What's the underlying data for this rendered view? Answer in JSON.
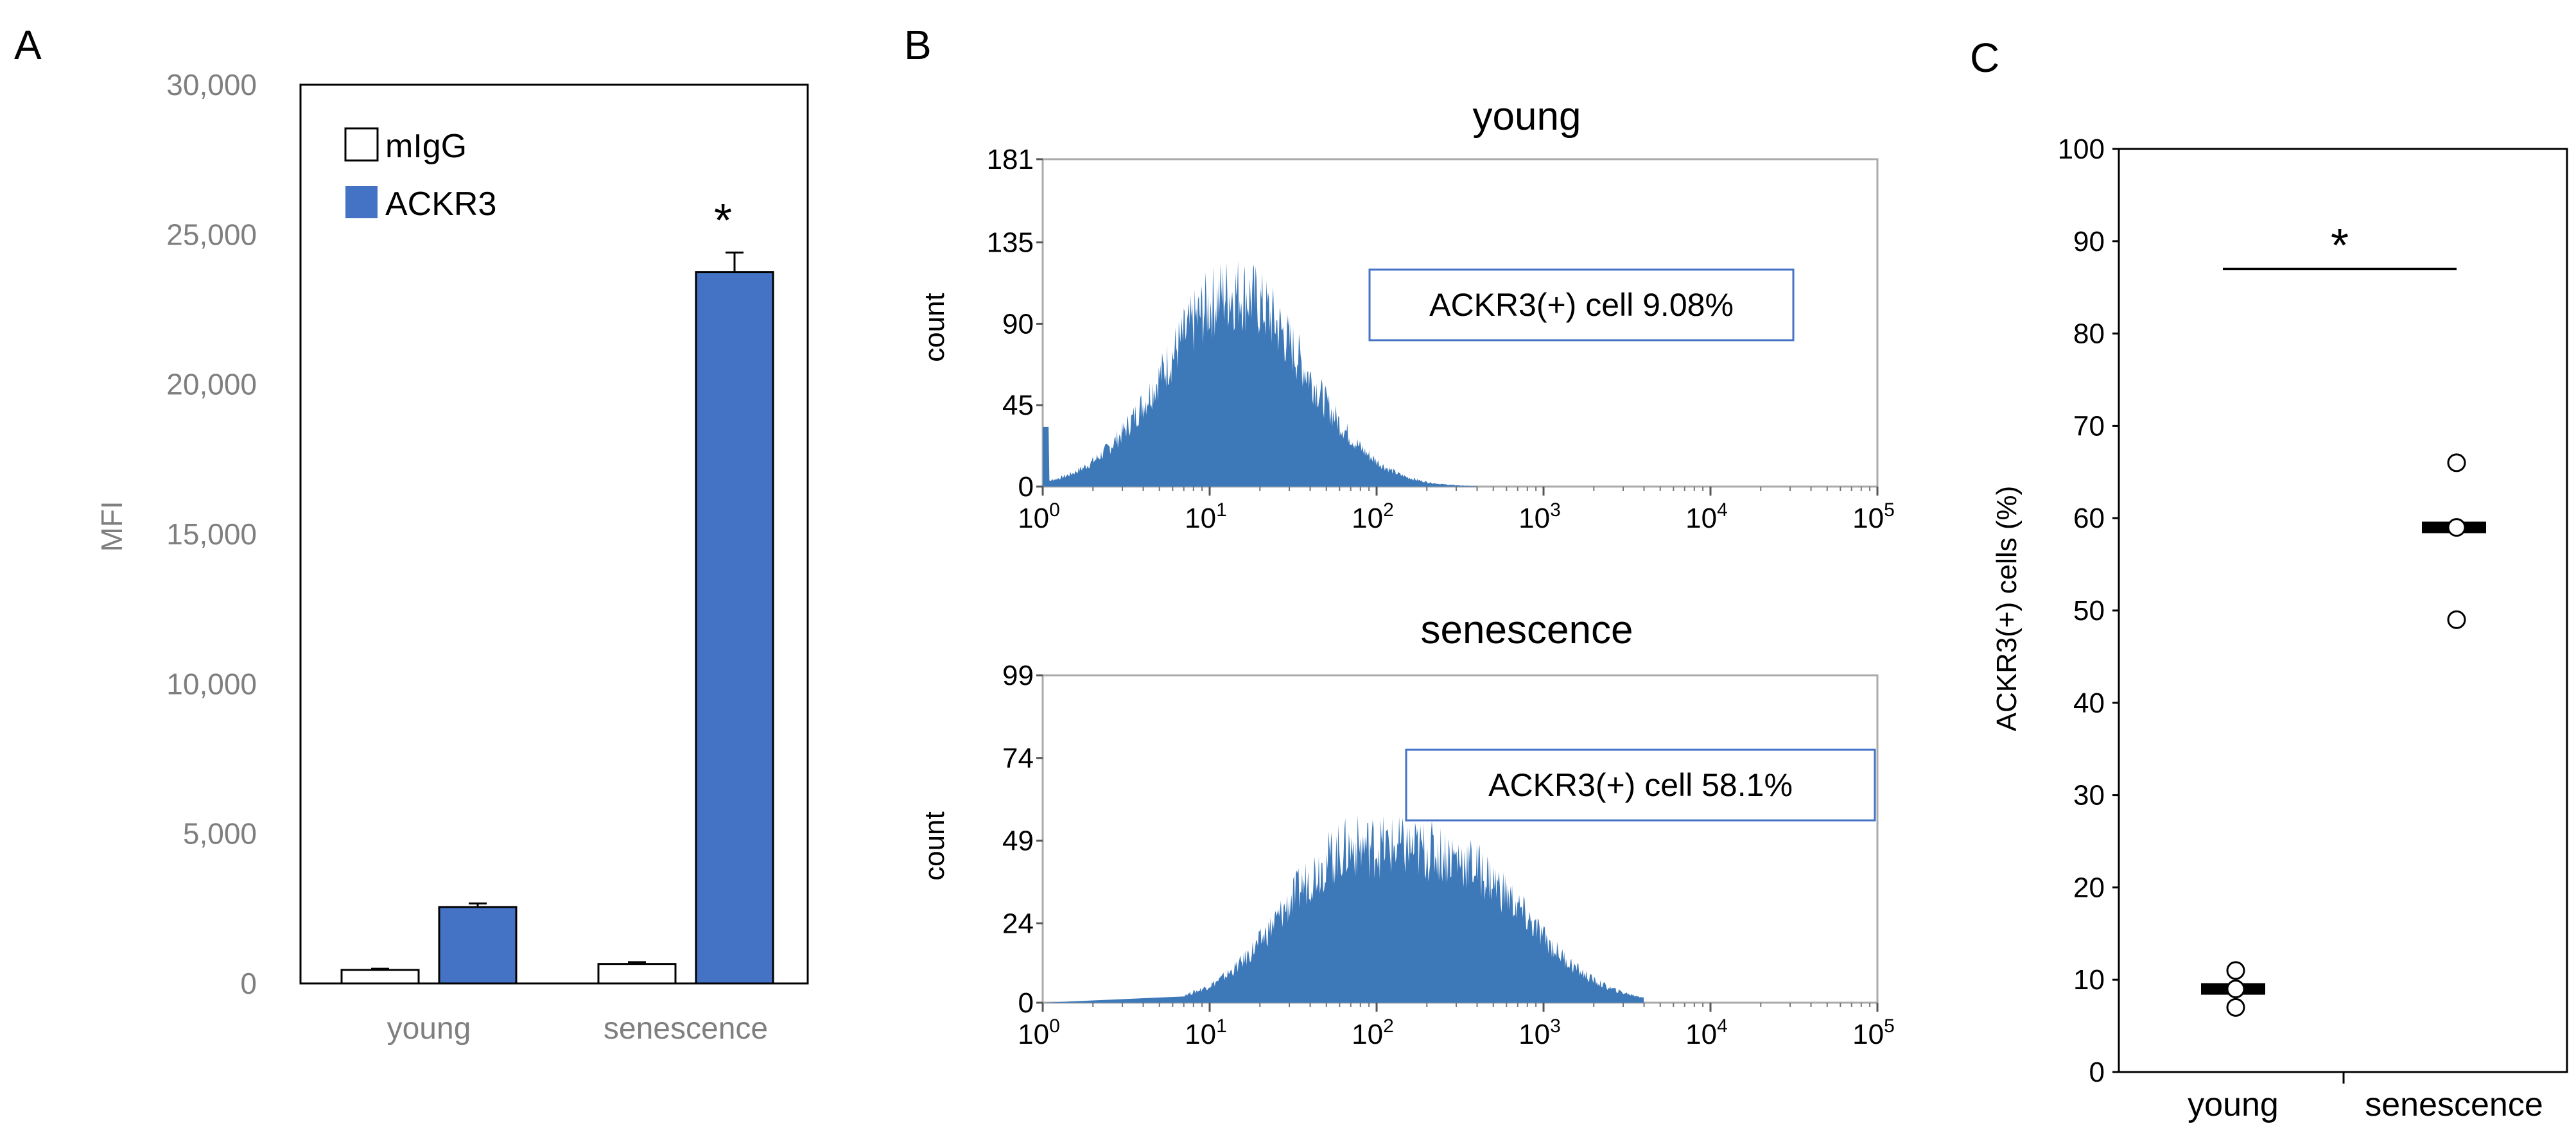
{
  "colors": {
    "blue": "#4472c4",
    "hist_blue": "#3d78b8",
    "axis": "#7f7f7f",
    "dark": "#000000"
  },
  "panel_labels": [
    "A",
    "B",
    "C"
  ],
  "chart_data": [
    {
      "panel": "A",
      "type": "bar",
      "ylabel": "MFI",
      "ylim": [
        0,
        30000
      ],
      "yticks": [
        "0",
        "5,000",
        "10,000",
        "15,000",
        "20,000",
        "25,000",
        "30,000"
      ],
      "categories": [
        "young",
        "senescence"
      ],
      "series": [
        {
          "name": "mIgG",
          "values": [
            450,
            650
          ],
          "errors": [
            40,
            60
          ]
        },
        {
          "name": "ACKR3",
          "values": [
            2550,
            23750
          ],
          "errors": [
            120,
            650
          ]
        }
      ],
      "annotation": "*"
    },
    {
      "panel": "B",
      "type": "area",
      "subplots": [
        {
          "title": "young",
          "ylabel": "count",
          "yticks": [
            "0",
            "45",
            "90",
            "135",
            "181"
          ],
          "ymax": 181,
          "xlog_range": [
            0,
            5
          ],
          "xticks": [
            "10^0",
            "10^1",
            "10^2",
            "10^3",
            "10^4",
            "10^5"
          ],
          "gate_label": "ACKR3(+) cell 9.08%",
          "center_log": 1.15,
          "spread": 0.42,
          "peak": 118
        },
        {
          "title": "senescence",
          "ylabel": "count",
          "yticks": [
            "0",
            "24",
            "49",
            "74",
            "99"
          ],
          "ymax": 99,
          "xlog_range": [
            0,
            5
          ],
          "xticks": [
            "10^0",
            "10^1",
            "10^2",
            "10^3",
            "10^4",
            "10^5"
          ],
          "gate_label": "ACKR3(+) cell 58.1%",
          "center_log": 2.1,
          "spread": 0.65,
          "peak": 52
        }
      ]
    },
    {
      "panel": "C",
      "type": "scatter",
      "ylabel": "ACKR3(+) cells (%)",
      "ylim": [
        0,
        100
      ],
      "yticks": [
        "0",
        "10",
        "20",
        "30",
        "40",
        "50",
        "60",
        "70",
        "80",
        "90",
        "100"
      ],
      "categories": [
        "young",
        "senescence"
      ],
      "points": [
        [
          7,
          9,
          11
        ],
        [
          49,
          59,
          66
        ]
      ],
      "means": [
        9,
        59
      ],
      "annotation": "*"
    }
  ]
}
